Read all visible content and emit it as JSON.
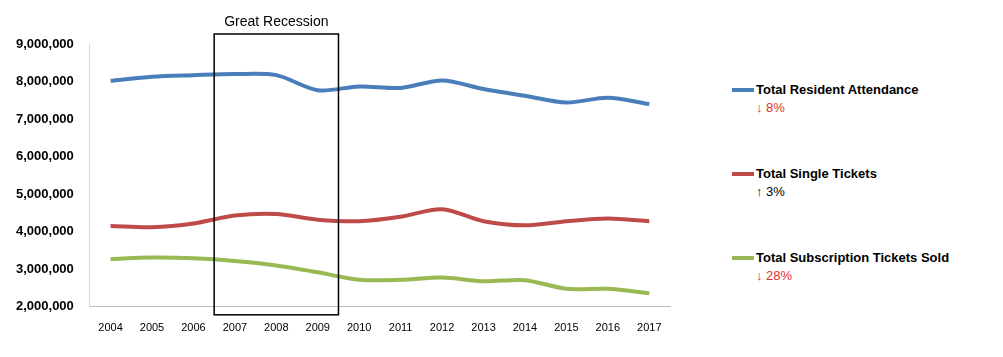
{
  "chart_data": {
    "type": "line",
    "categories": [
      "2004",
      "2005",
      "2006",
      "2007",
      "2008",
      "2009",
      "2010",
      "2011",
      "2012",
      "2013",
      "2014",
      "2015",
      "2016",
      "2017"
    ],
    "series": [
      {
        "name": "Total Resident Attendance",
        "color": "#4a7ebb",
        "change": -8,
        "change_label": "↓ 8%",
        "values": [
          8020000,
          8130000,
          8170000,
          8200000,
          8170000,
          7770000,
          7870000,
          7830000,
          8030000,
          7800000,
          7620000,
          7440000,
          7570000,
          7400000
        ]
      },
      {
        "name": "Total Single Tickets",
        "color": "#be4b48",
        "change": 3,
        "change_label": "↑ 3%",
        "values": [
          4150000,
          4120000,
          4220000,
          4430000,
          4470000,
          4320000,
          4280000,
          4400000,
          4600000,
          4280000,
          4170000,
          4280000,
          4350000,
          4280000
        ]
      },
      {
        "name": "Total Subscription Tickets Sold",
        "color": "#98b954",
        "change": -28,
        "change_label": "↓ 28%",
        "values": [
          3270000,
          3310000,
          3290000,
          3220000,
          3100000,
          2920000,
          2720000,
          2720000,
          2780000,
          2680000,
          2710000,
          2480000,
          2480000,
          2360000
        ]
      }
    ],
    "annotation": {
      "label": "Great Recession",
      "from": "2007",
      "to": "2009"
    },
    "ylim": [
      2000000,
      9000000
    ],
    "yticks": [
      {
        "value": 2000000,
        "label": "2,000,000"
      },
      {
        "value": 3000000,
        "label": "3,000,000"
      },
      {
        "value": 4000000,
        "label": "4,000,000"
      },
      {
        "value": 5000000,
        "label": "5,000,000"
      },
      {
        "value": 6000000,
        "label": "6,000,000"
      },
      {
        "value": 7000000,
        "label": "7,000,000"
      },
      {
        "value": 8000000,
        "label": "8,000,000"
      },
      {
        "value": 9000000,
        "label": "9,000,000"
      }
    ],
    "grid": false,
    "legend": "right"
  }
}
